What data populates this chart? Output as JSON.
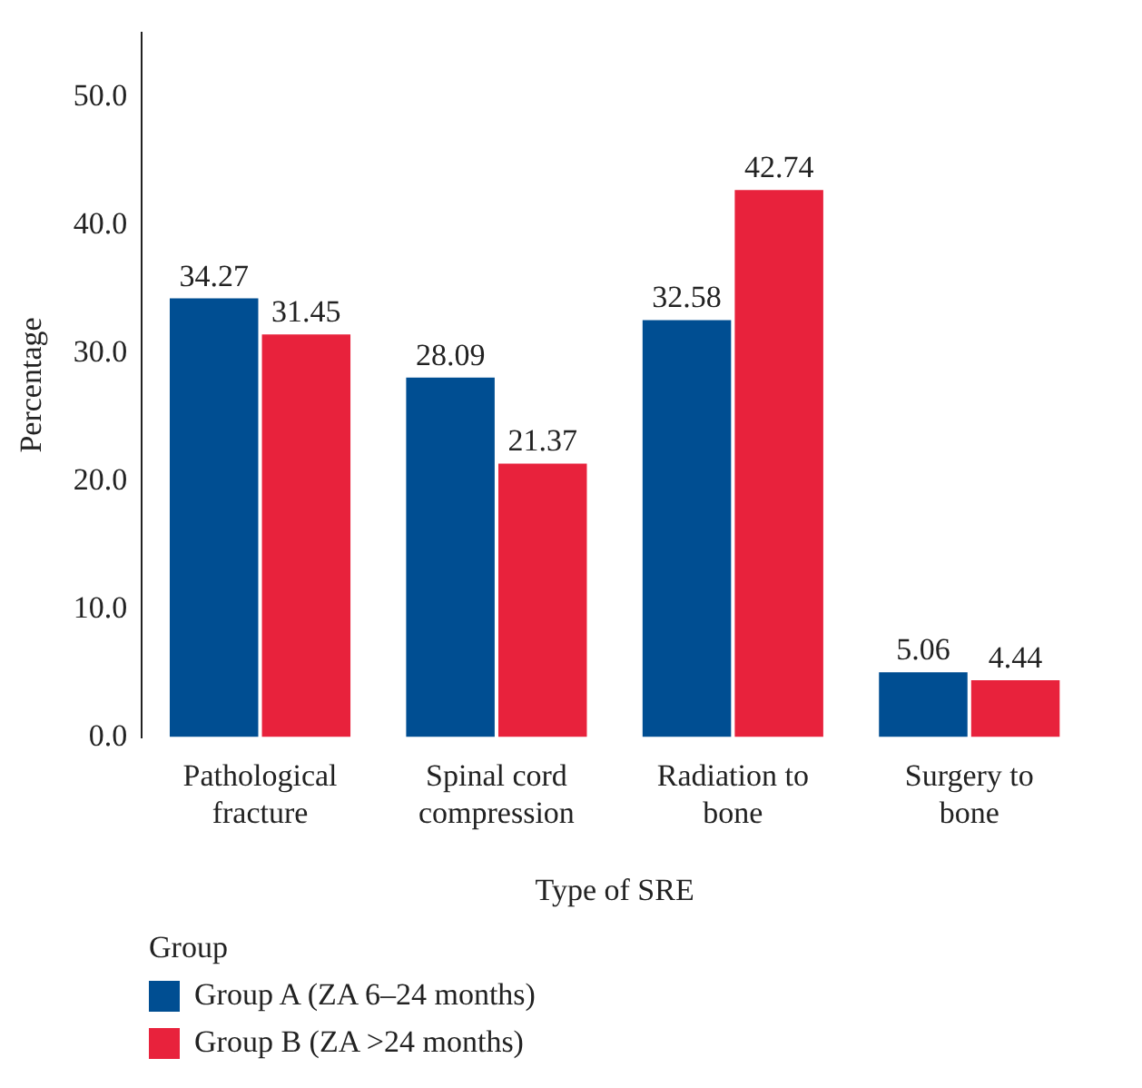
{
  "chart_data": {
    "type": "bar",
    "xlabel": "Type of SRE",
    "ylabel": "Percentage",
    "legend_title": "Group",
    "categories": [
      "Pathological fracture",
      "Spinal cord compression",
      "Radiation to bone",
      "Surgery to bone"
    ],
    "series": [
      {
        "name": "Group A (ZA 6–24 months)",
        "color": "#004e92",
        "values": [
          34.27,
          28.09,
          32.58,
          5.06
        ]
      },
      {
        "name": "Group B (ZA >24 months)",
        "color": "#e8223c",
        "values": [
          31.45,
          21.37,
          42.74,
          4.44
        ]
      }
    ],
    "ylim": [
      0,
      55
    ],
    "yticks": [
      {
        "value": 0,
        "label": "0.0"
      },
      {
        "value": 10,
        "label": "10.0"
      },
      {
        "value": 20,
        "label": "20.0"
      },
      {
        "value": 30,
        "label": "30.0"
      },
      {
        "value": 40,
        "label": "40.0"
      },
      {
        "value": 50,
        "label": "50.0"
      }
    ],
    "grid": false,
    "legend": "bottom left",
    "data_labels": true
  }
}
